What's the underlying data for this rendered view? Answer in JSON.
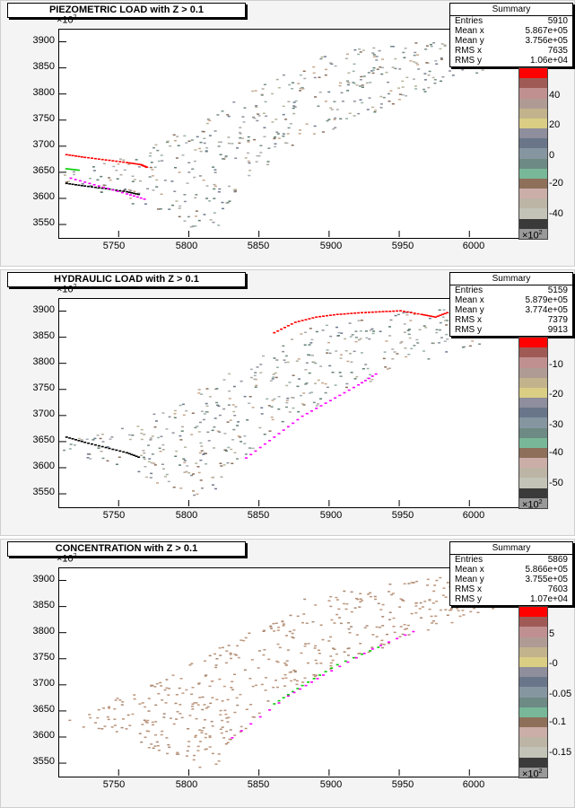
{
  "panels": [
    {
      "title": "PIEZOMETRIC LOAD with Z > 0.1",
      "stats": {
        "header": "Summary",
        "rows": [
          {
            "label": "Entries",
            "value": "5910"
          },
          {
            "label": "Mean x",
            "value": "5.867e+05"
          },
          {
            "label": "Mean y",
            "value": "3.756e+05"
          },
          {
            "label": "RMS x",
            "value": "7635"
          },
          {
            "label": "RMS y",
            "value": "1.06e+04"
          }
        ]
      },
      "z_labels": [
        "40",
        "20",
        "0",
        "-20",
        "-40"
      ],
      "palette": [
        "#ff0000",
        "#a05a55",
        "#c09090",
        "#b09b94",
        "#c2b38c",
        "#dacd84",
        "#8f8e9c",
        "#69768a",
        "#8696a1",
        "#6d8a84",
        "#78b898",
        "#8e6f59",
        "#cbaea8",
        "#bcb4a4",
        "#c3c3b7",
        "#3a3a3a",
        "#999999"
      ],
      "dot_colors": [
        "#8e8e9c",
        "#7a8f88",
        "#b9b39a",
        "#c6a78d",
        "#6e7a90",
        "#a9aeb2",
        "#5f7f70",
        "#b0a9a0",
        "#98b0a8",
        "#8a6f5c"
      ]
    },
    {
      "title": "HYDRAULIC LOAD with Z > 0.1",
      "stats": {
        "header": "Summary",
        "rows": [
          {
            "label": "Entries",
            "value": "5159"
          },
          {
            "label": "Mean x",
            "value": "5.879e+05"
          },
          {
            "label": "Mean y",
            "value": "3.774e+05"
          },
          {
            "label": "RMS x",
            "value": "7379"
          },
          {
            "label": "RMS y",
            "value": "9913"
          }
        ]
      },
      "z_labels": [
        "-10",
        "-20",
        "-30",
        "-40",
        "-50"
      ],
      "palette": [
        "#ff0000",
        "#a05a55",
        "#c09090",
        "#b09b94",
        "#c2b38c",
        "#dacd84",
        "#8f8e9c",
        "#69768a",
        "#8696a1",
        "#6d8a84",
        "#78b898",
        "#8e6f59",
        "#cbaea8",
        "#bcb4a4",
        "#c3c3b7",
        "#3a3a3a",
        "#999999"
      ],
      "dot_colors": [
        "#8e8e9c",
        "#6e7a90",
        "#b9b39a",
        "#c6a78d",
        "#7a8f88",
        "#a9aeb2",
        "#5f7f70",
        "#b0a9a0",
        "#98b0a8",
        "#8a6f5c"
      ]
    },
    {
      "title": "CONCENTRATION with Z > 0.1",
      "stats": {
        "header": "Summary",
        "rows": [
          {
            "label": "Entries",
            "value": "5869"
          },
          {
            "label": "Mean x",
            "value": "5.866e+05"
          },
          {
            "label": "Mean y",
            "value": "3.755e+05"
          },
          {
            "label": "RMS x",
            "value": "7603"
          },
          {
            "label": "RMS y",
            "value": "1.07e+04"
          }
        ]
      },
      "z_labels": [
        "5",
        "-0",
        "-0.05",
        "-0.1",
        "-0.15"
      ],
      "palette": [
        "#ff0000",
        "#a05a55",
        "#c09090",
        "#b09b94",
        "#c2b38c",
        "#dacd84",
        "#8f8e9c",
        "#69768a",
        "#8696a1",
        "#6d8a84",
        "#78b898",
        "#8e6f59",
        "#cbaea8",
        "#bcb4a4",
        "#c3c3b7",
        "#3a3a3a",
        "#999999"
      ],
      "dot_colors": [
        "#b8937a",
        "#b8937a",
        "#a98872",
        "#c09a80",
        "#b8937a"
      ]
    }
  ],
  "axis": {
    "x_exponent_base": "×10",
    "x_exponent_power": "2",
    "y_exponent_base": "×10",
    "y_exponent_power": "2",
    "x_ticks": [
      "5750",
      "5800",
      "5850",
      "5900",
      "5950",
      "6000"
    ],
    "y_ticks": [
      "3900",
      "3850",
      "3800",
      "3750",
      "3700",
      "3650",
      "3600",
      "3550"
    ]
  },
  "chart_data": [
    {
      "type": "scatter",
      "title": "PIEZOMETRIC LOAD with Z > 0.1",
      "xlim": [
        5707,
        6035
      ],
      "ylim": [
        3526,
        3925
      ],
      "xlabel": "",
      "ylabel": "",
      "z_range": [
        -45,
        50
      ],
      "region_outline": [
        [
          5710,
          3650
        ],
        [
          5760,
          3685
        ],
        [
          5830,
          3785
        ],
        [
          5880,
          3865
        ],
        [
          5925,
          3890
        ],
        [
          5985,
          3910
        ],
        [
          6032,
          3925
        ],
        [
          6032,
          3860
        ],
        [
          5975,
          3810
        ],
        [
          5925,
          3760
        ],
        [
          5860,
          3680
        ],
        [
          5835,
          3600
        ],
        [
          5820,
          3540
        ],
        [
          5800,
          3545
        ],
        [
          5770,
          3575
        ],
        [
          5750,
          3600
        ],
        [
          5710,
          3630
        ]
      ],
      "edge_series": [
        {
          "color": "#ff0000",
          "x": [
            5712,
            5725,
            5740,
            5755,
            5765,
            5770
          ],
          "y": [
            3685,
            3680,
            3675,
            3670,
            3666,
            3660
          ]
        },
        {
          "color": "#000000",
          "x": [
            5712,
            5725,
            5740,
            5755,
            5765
          ],
          "y": [
            3630,
            3625,
            3620,
            3614,
            3608
          ]
        },
        {
          "color": "#ff00ff",
          "x": [
            5715,
            5735,
            5755,
            5770
          ],
          "y": [
            3640,
            3625,
            3610,
            3598
          ]
        },
        {
          "color": "#00cc00",
          "x": [
            5712,
            5722
          ],
          "y": [
            3658,
            3655
          ]
        }
      ]
    },
    {
      "type": "scatter",
      "title": "HYDRAULIC LOAD with Z > 0.1",
      "xlim": [
        5707,
        6035
      ],
      "ylim": [
        3526,
        3925
      ],
      "xlabel": "",
      "ylabel": "",
      "z_range": [
        -55,
        -5
      ],
      "region_outline": [
        [
          5710,
          3650
        ],
        [
          5760,
          3685
        ],
        [
          5830,
          3785
        ],
        [
          5880,
          3865
        ],
        [
          5925,
          3890
        ],
        [
          5985,
          3910
        ],
        [
          6032,
          3925
        ],
        [
          6032,
          3860
        ],
        [
          5975,
          3810
        ],
        [
          5925,
          3760
        ],
        [
          5860,
          3680
        ],
        [
          5835,
          3600
        ],
        [
          5820,
          3540
        ],
        [
          5800,
          3545
        ],
        [
          5770,
          3575
        ],
        [
          5750,
          3600
        ],
        [
          5710,
          3630
        ]
      ],
      "edge_series": [
        {
          "color": "#ff0000",
          "x": [
            5860,
            5875,
            5890,
            5905,
            5920,
            5935,
            5950,
            5965,
            5975,
            5985
          ],
          "y": [
            3860,
            3880,
            3890,
            3895,
            3898,
            3900,
            3902,
            3895,
            3890,
            3900
          ]
        },
        {
          "color": "#ff00ff",
          "x": [
            5840,
            5860,
            5880,
            5900,
            5920,
            5935
          ],
          "y": [
            3620,
            3660,
            3700,
            3730,
            3760,
            3785
          ]
        },
        {
          "color": "#000000",
          "x": [
            5712,
            5725,
            5740,
            5755,
            5765
          ],
          "y": [
            3660,
            3650,
            3640,
            3630,
            3620
          ]
        }
      ]
    },
    {
      "type": "scatter",
      "title": "CONCENTRATION with Z > 0.1",
      "xlim": [
        5707,
        6035
      ],
      "ylim": [
        3526,
        3925
      ],
      "xlabel": "",
      "ylabel": "",
      "z_range": [
        -0.18,
        0.05
      ],
      "region_outline": [
        [
          5710,
          3650
        ],
        [
          5760,
          3685
        ],
        [
          5830,
          3785
        ],
        [
          5880,
          3865
        ],
        [
          5925,
          3890
        ],
        [
          5985,
          3910
        ],
        [
          6032,
          3925
        ],
        [
          6032,
          3860
        ],
        [
          5975,
          3810
        ],
        [
          5925,
          3760
        ],
        [
          5860,
          3680
        ],
        [
          5835,
          3600
        ],
        [
          5820,
          3540
        ],
        [
          5800,
          3545
        ],
        [
          5770,
          3575
        ],
        [
          5750,
          3600
        ],
        [
          5710,
          3630
        ]
      ],
      "edge_series": [
        {
          "color": "#00cc00",
          "x": [
            5860,
            5880,
            5905,
            5940
          ],
          "y": [
            3665,
            3700,
            3740,
            3780
          ]
        },
        {
          "color": "#ff00ff",
          "x": [
            5830,
            5870,
            5895,
            5930,
            5965
          ],
          "y": [
            3600,
            3680,
            3720,
            3770,
            3810
          ]
        }
      ]
    }
  ]
}
